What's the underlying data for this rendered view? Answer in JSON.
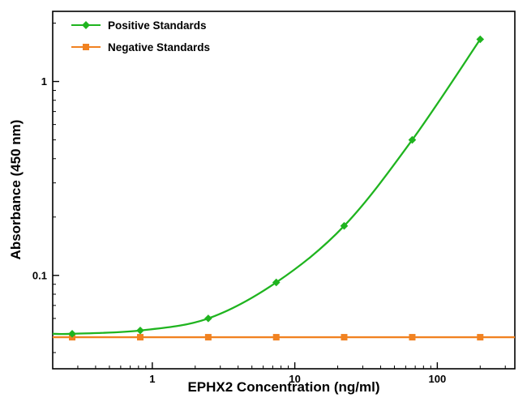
{
  "figure": {
    "title": "",
    "xlabel": "EPHX2 Concentration (ng/ml)",
    "ylabel": "Absorbance (450 nm)"
  },
  "chart_data": {
    "type": "line",
    "title": "",
    "xlabel": "EPHX2 Concentration (ng/ml)",
    "ylabel": "Absorbance (450 nm)",
    "x_scale": "log",
    "y_scale": "log",
    "x": [
      0.274,
      0.823,
      2.47,
      7.41,
      22.2,
      66.7,
      200
    ],
    "series": [
      {
        "name": "Positive Standards",
        "color": "#1fb41f",
        "marker": "diamond",
        "smooth": true,
        "extend_left": true,
        "extend_right": false,
        "values": [
          0.05,
          0.052,
          0.06,
          0.092,
          0.18,
          0.5,
          1.65
        ]
      },
      {
        "name": "Negative Standards",
        "color": "#f18221",
        "marker": "square",
        "smooth": false,
        "extend_left": true,
        "extend_right": true,
        "values": [
          0.048,
          0.048,
          0.048,
          0.048,
          0.048,
          0.048,
          0.048
        ]
      }
    ],
    "x_ticks": [
      1,
      10,
      100
    ],
    "y_ticks": [
      0.1,
      1
    ],
    "xlim": [
      0.2,
      350
    ],
    "ylim": [
      0.033,
      2.3
    ],
    "grid": false,
    "legend_position": "top-left",
    "frame_color": "#000000",
    "tick_label_color": "#000000"
  }
}
